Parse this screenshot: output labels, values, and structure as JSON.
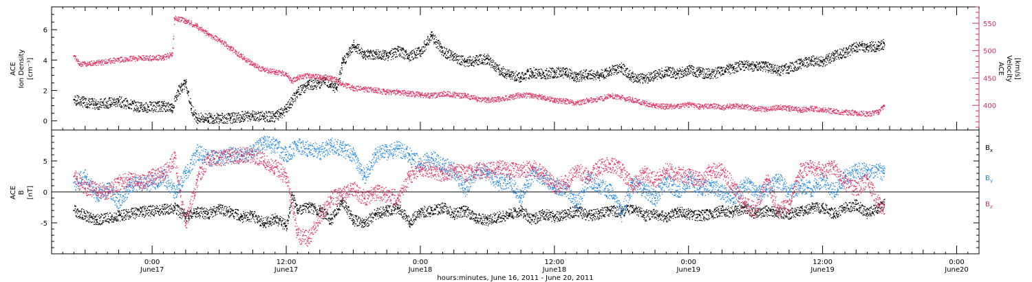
{
  "chart_data": [
    {
      "type": "scatter",
      "panel": "top",
      "ylabel_left": [
        "ACE",
        "Ion Density",
        "[cm⁻³]"
      ],
      "ylabel_right": [
        "ACE",
        "Velocity",
        "[km/s]"
      ],
      "ylim_left": [
        -0.6,
        7.5
      ],
      "yticks_left": [
        "0",
        "2",
        "4",
        "6"
      ],
      "ylim_right": [
        355,
        580
      ],
      "yticks_right": [
        "400",
        "450",
        "500",
        "550"
      ],
      "series": [
        {
          "axis": "left",
          "color": "#000000",
          "x": [
            -7,
            -5,
            -3,
            -1,
            1,
            1.8,
            2.3,
            3,
            3.5,
            4,
            5,
            7,
            9,
            10,
            11,
            11.5,
            12,
            13,
            14,
            15,
            15.5,
            16,
            16.5,
            17,
            18,
            19,
            20,
            21,
            22,
            23,
            24,
            25,
            26,
            27,
            28,
            29,
            30,
            31,
            32,
            33,
            34,
            35,
            36,
            37,
            38,
            39,
            40,
            41,
            42,
            43,
            44,
            45,
            46,
            47,
            48,
            49,
            50,
            51,
            52,
            53,
            54,
            55,
            56,
            57,
            58,
            59,
            60,
            61,
            62,
            63,
            64,
            65,
            65.5
          ],
          "y": [
            1.4,
            1.1,
            1.3,
            0.9,
            1.0,
            0.9,
            2.0,
            2.5,
            0.8,
            0.2,
            0.2,
            0.2,
            0.4,
            0.3,
            0.3,
            0.5,
            0.8,
            1.9,
            2.4,
            2.5,
            2.7,
            2.4,
            2.1,
            3.8,
            5.0,
            4.4,
            4.4,
            4.3,
            4.6,
            4.3,
            4.6,
            5.6,
            4.6,
            4.2,
            3.9,
            4.0,
            4.1,
            3.4,
            3.0,
            2.9,
            3.2,
            3.1,
            3.2,
            3.2,
            2.9,
            3.1,
            3.0,
            3.3,
            3.5,
            2.9,
            2.8,
            3.0,
            3.3,
            3.1,
            3.4,
            3.2,
            3.1,
            3.3,
            3.5,
            3.7,
            3.6,
            3.6,
            3.3,
            3.5,
            3.8,
            4.0,
            3.9,
            4.3,
            4.5,
            4.9,
            4.9,
            4.9,
            5.1
          ]
        },
        {
          "axis": "right",
          "color": "#e03060",
          "x": [
            -7,
            -6.5,
            -5,
            -3,
            -1,
            1,
            1.8,
            2,
            3,
            4,
            5,
            6,
            7,
            8,
            9,
            10,
            11,
            12,
            12.5,
            13,
            14,
            15,
            16,
            16.5,
            17,
            18,
            19,
            20,
            21,
            22,
            23,
            24,
            25,
            26,
            27,
            28,
            29,
            30,
            31,
            32,
            33,
            34,
            35,
            36,
            37,
            38,
            39,
            40,
            41,
            42,
            43,
            44,
            45,
            46,
            47,
            48,
            49,
            50,
            51,
            52,
            53,
            54,
            55,
            56,
            57,
            58,
            59,
            60,
            61,
            62,
            63,
            64,
            65,
            65.5
          ],
          "y": [
            490,
            475,
            478,
            484,
            487,
            488,
            495,
            560,
            555,
            545,
            530,
            520,
            505,
            490,
            475,
            465,
            462,
            458,
            445,
            452,
            455,
            452,
            450,
            447,
            440,
            432,
            430,
            428,
            425,
            425,
            422,
            420,
            418,
            422,
            420,
            418,
            413,
            410,
            412,
            415,
            420,
            418,
            415,
            410,
            408,
            405,
            410,
            412,
            418,
            415,
            410,
            405,
            400,
            398,
            400,
            402,
            398,
            400,
            397,
            400,
            398,
            395,
            393,
            397,
            395,
            392,
            395,
            392,
            390,
            388,
            387,
            385,
            388,
            400
          ]
        }
      ]
    },
    {
      "type": "scatter",
      "panel": "bottom",
      "ylabel_left": [
        "ACE",
        "B",
        "[nT]"
      ],
      "ylim_left": [
        -10,
        10
      ],
      "yticks_left": [
        "-5",
        "0",
        "5"
      ],
      "zero_line": true,
      "legend_placement": "right",
      "series": [
        {
          "name": "Bx",
          "label_main": "B",
          "label_sub": "x",
          "color": "#000000",
          "x": [
            -7,
            -5,
            -3,
            -1,
            1,
            2,
            3,
            4,
            5,
            6,
            7,
            8,
            9,
            10,
            11,
            12,
            12.5,
            13,
            14,
            15,
            16,
            17,
            18,
            19,
            20,
            21,
            22,
            23,
            24,
            25,
            26,
            27,
            28,
            29,
            30,
            31,
            32,
            33,
            34,
            35,
            36,
            37,
            38,
            39,
            40,
            41,
            42,
            43,
            44,
            45,
            46,
            47,
            48,
            49,
            50,
            51,
            52,
            53,
            54,
            55,
            56,
            57,
            58,
            59,
            60,
            61,
            62,
            63,
            64,
            65,
            65.5
          ],
          "y": [
            -3.0,
            -4.5,
            -3.8,
            -3.2,
            -2.8,
            -2.5,
            -4.0,
            -3.2,
            -3.5,
            -2.8,
            -3.2,
            -4.0,
            -3.8,
            -5.0,
            -4.2,
            -5.5,
            -0.5,
            -3.0,
            -2.5,
            -3.0,
            -4.5,
            -1.5,
            -4.5,
            -5.0,
            -3.5,
            -3.0,
            -2.5,
            -4.8,
            -3.2,
            -3.0,
            -2.5,
            -3.5,
            -3.0,
            -4.2,
            -4.5,
            -4.0,
            -3.5,
            -3.0,
            -4.5,
            -3.5,
            -4.0,
            -3.5,
            -3.0,
            -3.8,
            -3.5,
            -3.0,
            -3.2,
            -2.5,
            -3.8,
            -3.5,
            -4.0,
            -3.2,
            -3.5,
            -3.8,
            -3.5,
            -3.0,
            -3.2,
            -2.5,
            -3.5,
            -3.0,
            -3.2,
            -3.5,
            -3.0,
            -2.5,
            -2.5,
            -3.5,
            -2.5,
            -2.0,
            -3.5,
            -2.5,
            -2.0
          ]
        },
        {
          "name": "By",
          "label_main": "B",
          "label_sub": "y",
          "color": "#1e88e5",
          "x": [
            -7,
            -6,
            -5,
            -4,
            -3,
            -2,
            -1,
            0,
            1,
            2,
            3,
            4,
            5,
            6,
            7,
            8,
            9,
            10,
            11,
            12,
            13,
            14,
            15,
            16,
            17,
            18,
            19,
            20,
            21,
            22,
            23,
            24,
            25,
            26,
            27,
            28,
            29,
            30,
            31,
            32,
            33,
            34,
            35,
            36,
            37,
            38,
            39,
            40,
            41,
            42,
            43,
            44,
            45,
            46,
            47,
            48,
            49,
            50,
            51,
            52,
            53,
            54,
            55,
            56,
            57,
            58,
            59,
            60,
            61,
            62,
            63,
            64,
            65,
            65.5
          ],
          "y": [
            1.5,
            2.5,
            -0.5,
            0.5,
            -1.5,
            1.0,
            1.5,
            1.5,
            2.5,
            0,
            3.0,
            6.5,
            5.5,
            5.5,
            6.0,
            5.8,
            6.5,
            8.0,
            7.5,
            6.0,
            7.5,
            7.0,
            6.5,
            7.5,
            7.0,
            6.0,
            2.5,
            6.0,
            6.5,
            7.0,
            6.0,
            4.5,
            5.5,
            4.5,
            3.5,
            0.5,
            3.5,
            3.0,
            1.5,
            2.0,
            -1.0,
            3.0,
            2.5,
            1.0,
            0.5,
            -2.0,
            2.0,
            1.0,
            0,
            -3.5,
            1.5,
            0.5,
            -1.0,
            2.0,
            0,
            2.0,
            0.5,
            1.0,
            0,
            -1.0,
            1.5,
            0,
            0.5,
            2.0,
            0,
            1.0,
            0.5,
            2.0,
            0,
            2.5,
            3.5,
            3.5,
            3.5,
            3.0
          ]
        },
        {
          "name": "Bz",
          "label_main": "B",
          "label_sub": "z",
          "color": "#e03060",
          "x": [
            -7,
            -6,
            -5,
            -4,
            -3,
            -2,
            -1,
            0,
            1,
            2,
            3,
            4,
            5,
            6,
            7,
            8,
            9,
            10,
            11,
            12,
            13,
            14,
            15,
            16,
            17,
            18,
            19,
            20,
            21,
            22,
            23,
            24,
            25,
            26,
            27,
            28,
            29,
            30,
            31,
            32,
            33,
            34,
            35,
            36,
            37,
            38,
            39,
            40,
            41,
            42,
            43,
            44,
            45,
            46,
            47,
            48,
            49,
            50,
            51,
            52,
            53,
            54,
            55,
            56,
            57,
            58,
            59,
            60,
            61,
            62,
            63,
            64,
            65,
            65.5
          ],
          "y": [
            2.5,
            0.5,
            0.5,
            0,
            1.5,
            2.0,
            1.5,
            2.5,
            3.0,
            5.5,
            -5.0,
            2.0,
            5.5,
            5.5,
            5.8,
            6.0,
            6.0,
            5.0,
            4.0,
            2.5,
            -7.0,
            -7.5,
            -4.0,
            -1.0,
            -0.5,
            0.5,
            -1.0,
            0,
            -0.5,
            -1.0,
            2.5,
            4.0,
            3.5,
            3.0,
            3.5,
            3.0,
            3.5,
            3.5,
            4.0,
            3.5,
            3.5,
            4.0,
            3.0,
            1.0,
            1.5,
            3.5,
            2.5,
            4.0,
            4.5,
            3.5,
            1.0,
            3.0,
            2.0,
            3.5,
            3.0,
            2.5,
            2.0,
            3.5,
            3.5,
            1.0,
            -2.0,
            -3.0,
            2.0,
            -3.0,
            -2.0,
            3.5,
            4.0,
            3.5,
            4.0,
            1.5,
            0.5,
            2.0,
            -2.0,
            -2.5
          ]
        }
      ]
    }
  ],
  "x_axis": {
    "xlim": [
      -9,
      74
    ],
    "ticks": [
      {
        "x": 0,
        "time": "0:00",
        "date": "June17"
      },
      {
        "x": 12,
        "time": "12:00",
        "date": "June17"
      },
      {
        "x": 24,
        "time": "0:00",
        "date": "June18"
      },
      {
        "x": 36,
        "time": "12:00",
        "date": "June18"
      },
      {
        "x": 48,
        "time": "0:00",
        "date": "June19"
      },
      {
        "x": 60,
        "time": "12:00",
        "date": "June19"
      },
      {
        "x": 72,
        "time": "0:00",
        "date": "June20"
      }
    ],
    "xlabel": "hours:minutes, June 16, 2011 - June 20, 2011"
  },
  "colors": {
    "density": "#000000",
    "velocity": "#e03060",
    "bx": "#000000",
    "by": "#1e88e5",
    "bz": "#e03060",
    "velocity_axis": "#c0306a"
  }
}
